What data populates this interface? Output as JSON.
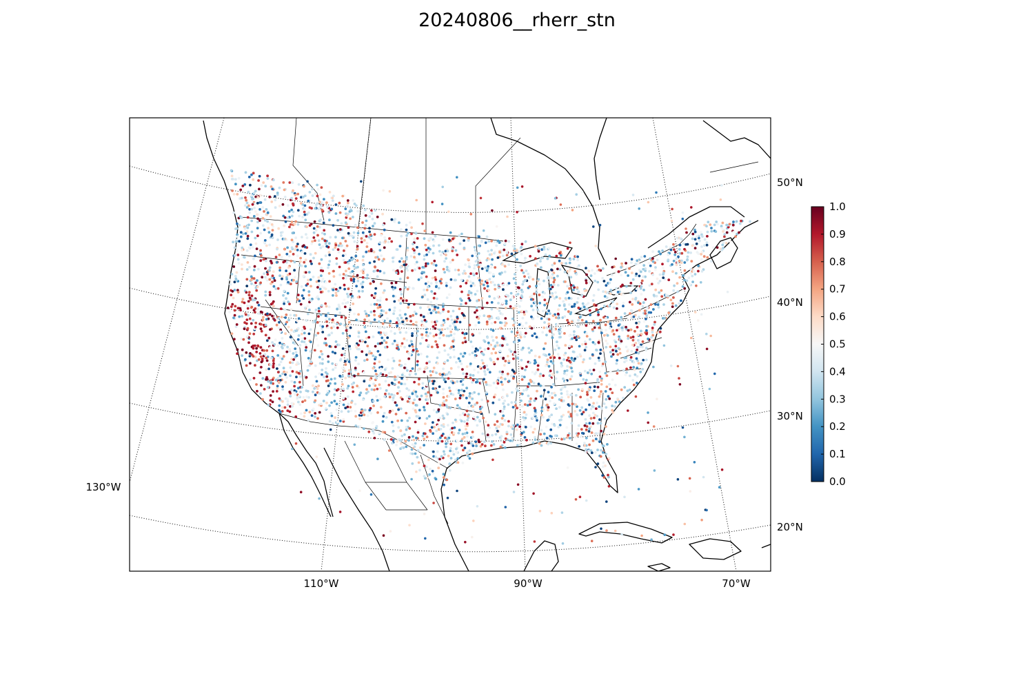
{
  "title": "20240806__rherr_stn",
  "map": {
    "lon_labels": [
      "130°W",
      "110°W",
      "90°W",
      "70°W"
    ],
    "lat_labels": [
      "50°N",
      "40°N",
      "30°N",
      "20°N"
    ],
    "station_count_note": ""
  },
  "colorbar": {
    "colormap": "RdBu_r",
    "vmin": 0.0,
    "vmax": 1.0,
    "ticks": [
      "0.0",
      "0.1",
      "0.2",
      "0.3",
      "0.4",
      "0.5",
      "0.6",
      "0.7",
      "0.8",
      "0.9",
      "1.0"
    ],
    "stops": [
      "#053061",
      "#2166ac",
      "#4393c3",
      "#92c5de",
      "#d1e5f0",
      "#f7f7f7",
      "#fddbc7",
      "#f4a582",
      "#d6604d",
      "#b2182b",
      "#67001f"
    ]
  },
  "colors": {
    "frame": "#000000",
    "coast": "#000000",
    "graticule": "#000000"
  }
}
